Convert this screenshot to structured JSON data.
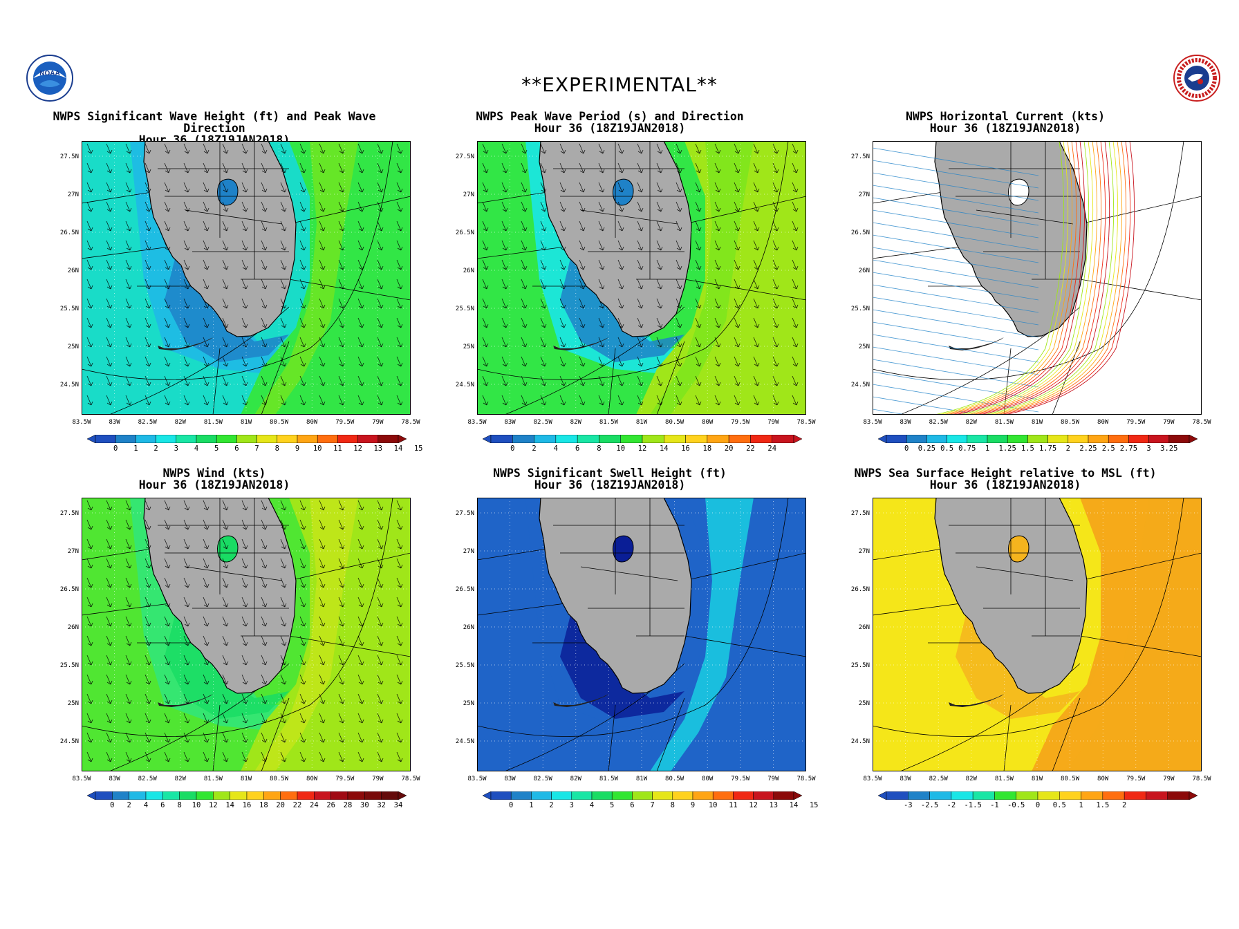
{
  "banner": "**EXPERIMENTAL**",
  "logos": {
    "left": {
      "icon": "noaa-logo",
      "text": "NOAA"
    },
    "right": {
      "icon": "nws-logo"
    }
  },
  "y_ticks": [
    "27.5N",
    "27N",
    "26.5N",
    "26N",
    "25.5N",
    "25N",
    "24.5N"
  ],
  "x_ticks": [
    "83.5W",
    "83W",
    "82.5W",
    "82W",
    "81.5W",
    "81W",
    "80.5W",
    "80W",
    "79.5W",
    "79W",
    "78.5W"
  ],
  "colors": {
    "land": "#aaaaaa",
    "coast": "#000000"
  },
  "panels": [
    {
      "title1": "NWPS Significant Wave Height (ft) and Peak Wave Direction",
      "title2": "Hour 36 (18Z19JAN2018)",
      "variable": "significant wave height",
      "arrows": true,
      "scale_labels": [
        "0",
        "1",
        "2",
        "3",
        "4",
        "5",
        "6",
        "7",
        "8",
        "9",
        "10",
        "11",
        "12",
        "13",
        "14",
        "15"
      ],
      "scale_colors": [
        "#1f4fbf",
        "#1f82c8",
        "#1fb9e6",
        "#19e6e6",
        "#19e6a5",
        "#19dc64",
        "#32e632",
        "#a0e619",
        "#e6e619",
        "#ffd21e",
        "#ffa514",
        "#ff6e0f",
        "#f02814",
        "#c8141e",
        "#8c0a0a"
      ],
      "field": {
        "gulf": "#19dcc8",
        "near": "#1fb9e6",
        "shelf": "#1f82c8",
        "atlantic": "#32e646",
        "stream": "#78e61e"
      }
    },
    {
      "title1": "NWPS Peak Wave Period (s) and Direction",
      "title2": "Hour 36 (18Z19JAN2018)",
      "variable": "peak wave period",
      "arrows": true,
      "scale_labels": [
        "0",
        "2",
        "4",
        "6",
        "8",
        "10",
        "12",
        "14",
        "16",
        "18",
        "20",
        "22",
        "24"
      ],
      "scale_colors": [
        "#1f4fbf",
        "#1f82c8",
        "#1fb9e6",
        "#19e6e6",
        "#19e6a5",
        "#19dc64",
        "#32e632",
        "#a0e619",
        "#e6e619",
        "#ffd21e",
        "#ffa514",
        "#ff6e0f",
        "#f02814",
        "#c8141e"
      ],
      "field": {
        "gulf": "#32e646",
        "near": "#19e6e6",
        "shelf": "#1f82c8",
        "atlantic": "#a0e619",
        "stream": "#78e61e"
      }
    },
    {
      "title1": "NWPS Horizontal Current (kts)",
      "title2": "Hour 36 (18Z19JAN2018)",
      "variable": "horizontal current",
      "arrows": false,
      "scale_labels": [
        "0",
        "0.25",
        "0.5",
        "0.75",
        "1",
        "1.25",
        "1.5",
        "1.75",
        "2",
        "2.25",
        "2.5",
        "2.75",
        "3",
        "3.25"
      ],
      "scale_colors": [
        "#1f4fbf",
        "#1f82c8",
        "#1fb9e6",
        "#19e6e6",
        "#19e6a5",
        "#19dc64",
        "#32e632",
        "#a0e619",
        "#e6e619",
        "#ffd21e",
        "#ffa514",
        "#ff6e0f",
        "#f02814",
        "#c8141e",
        "#8c0a0a"
      ],
      "field": {
        "gulf": "#ffffff",
        "near": "#ffffff",
        "shelf": "#ffffff",
        "atlantic": "#ffffff",
        "stream": "#ffffff"
      }
    },
    {
      "title1": "NWPS Wind (kts)",
      "title2": "Hour 36 (18Z19JAN2018)",
      "variable": "wind",
      "arrows": true,
      "scale_labels": [
        "0",
        "2",
        "4",
        "6",
        "8",
        "10",
        "12",
        "14",
        "16",
        "18",
        "20",
        "22",
        "24",
        "26",
        "28",
        "30",
        "32",
        "34"
      ],
      "scale_colors": [
        "#1f4fbf",
        "#1f82c8",
        "#1fb9e6",
        "#19e6e6",
        "#19e6a5",
        "#19dc64",
        "#32e632",
        "#a0e619",
        "#e6e619",
        "#ffd21e",
        "#ffa514",
        "#ff6e0f",
        "#f02814",
        "#c8141e",
        "#a00a14",
        "#8c0a0a",
        "#780a0a",
        "#640a0a"
      ],
      "field": {
        "gulf": "#50e632",
        "near": "#32e678",
        "shelf": "#19dc64",
        "atlantic": "#a0e619",
        "stream": "#c8e619"
      }
    },
    {
      "title1": "NWPS Significant Swell Height (ft)",
      "title2": "Hour 36 (18Z19JAN2018)",
      "variable": "significant swell height",
      "arrows": false,
      "scale_labels": [
        "0",
        "1",
        "2",
        "3",
        "4",
        "5",
        "6",
        "7",
        "8",
        "9",
        "10",
        "11",
        "12",
        "13",
        "14",
        "15"
      ],
      "scale_colors": [
        "#1f4fbf",
        "#1f82c8",
        "#1fb9e6",
        "#19e6e6",
        "#19e6a5",
        "#19dc64",
        "#32e632",
        "#a0e619",
        "#e6e619",
        "#ffd21e",
        "#ffa514",
        "#ff6e0f",
        "#f02814",
        "#c8141e",
        "#8c0a0a"
      ],
      "field": {
        "gulf": "#1f64c8",
        "near": "#1f64c8",
        "shelf": "#0a1e96",
        "atlantic": "#1f64c8",
        "stream": "#19dce6"
      }
    },
    {
      "title1": "NWPS Sea Surface Height relative to MSL (ft)",
      "title2": "Hour 36 (18Z19JAN2018)",
      "variable": "sea surface height",
      "arrows": false,
      "scale_labels": [
        "-3",
        "-2.5",
        "-2",
        "-1.5",
        "-1",
        "-0.5",
        "0",
        "0.5",
        "1",
        "1.5",
        "2"
      ],
      "scale_colors": [
        "#1f4fbf",
        "#1f82c8",
        "#1fb9e6",
        "#19e6e6",
        "#19e6a5",
        "#32e632",
        "#a0e619",
        "#e6e619",
        "#ffd21e",
        "#ffa514",
        "#ff6e0f",
        "#f02814",
        "#c8141e",
        "#8c0a0a"
      ],
      "field": {
        "gulf": "#f5e619",
        "near": "#f5e619",
        "shelf": "#f5b41e",
        "atlantic": "#f5aa19",
        "stream": "#f5aa19"
      }
    }
  ]
}
